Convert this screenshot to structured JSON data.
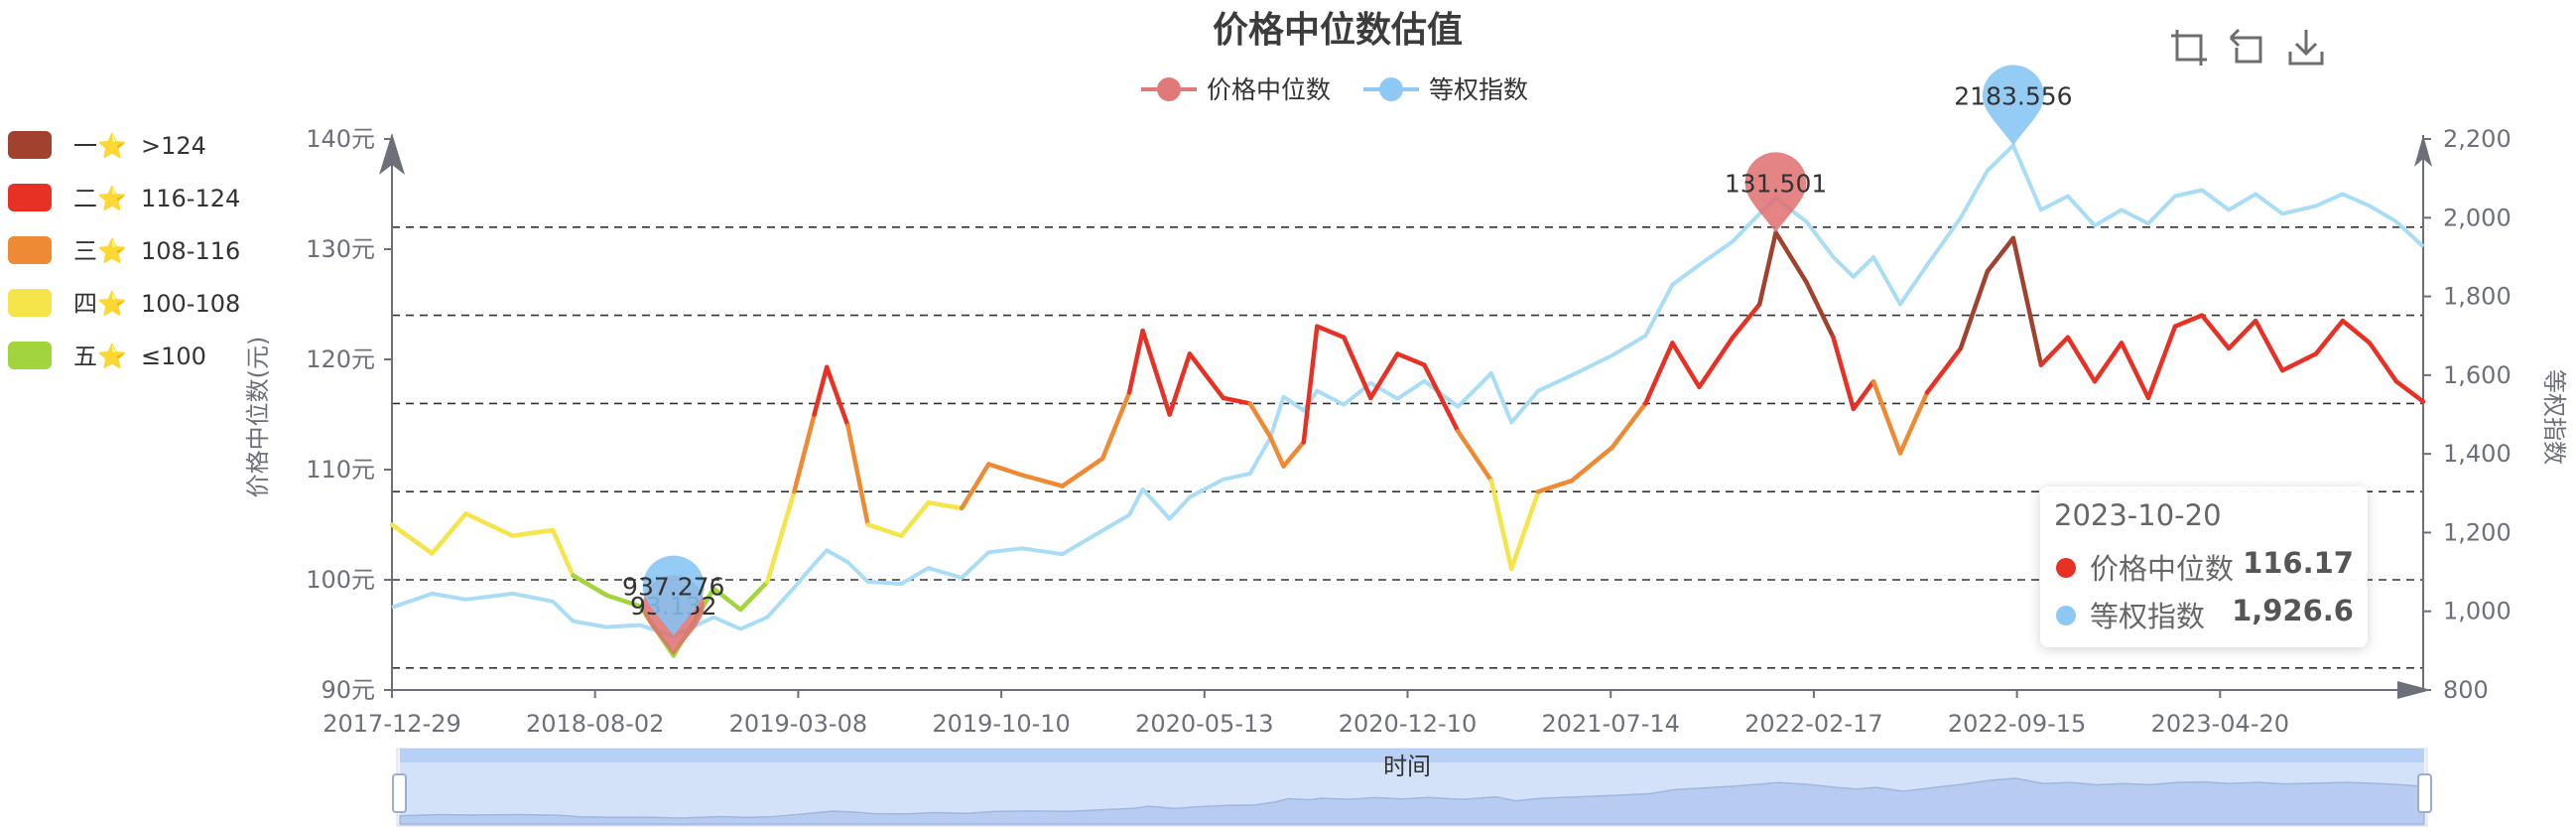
{
  "toolbox": {
    "icons": [
      "zoom-select-icon",
      "zoom-reset-icon",
      "save-image-icon"
    ]
  },
  "visual_map": {
    "pieces": [
      {
        "name": "一⭐",
        "range": ">124",
        "color": "#a0422e"
      },
      {
        "name": "二⭐",
        "range": "116-124",
        "color": "#e63124"
      },
      {
        "name": "三⭐",
        "range": "108-116",
        "color": "#ef8a34"
      },
      {
        "name": "四⭐",
        "range": "100-108",
        "color": "#f5e44a"
      },
      {
        "name": "五⭐",
        "range": "≤100",
        "color": "#a2d43c"
      }
    ]
  },
  "tooltip": {
    "date": "2023-10-20",
    "rows": [
      {
        "label": "价格中位数",
        "value": "116.17",
        "color": "#e63124"
      },
      {
        "label": "等权指数",
        "value": "1,926.6",
        "color": "#8ec9f5"
      }
    ]
  },
  "datazoom": {
    "label": "时间"
  },
  "chart_data": {
    "type": "line",
    "title": "价格中位数估值",
    "legend": [
      "价格中位数",
      "等权指数"
    ],
    "legend_colors": [
      "#e07a7a",
      "#8ec9f5"
    ],
    "x_ticks": [
      "2017-12-29",
      "2018-08-02",
      "2019-03-08",
      "2019-10-10",
      "2020-05-13",
      "2020-12-10",
      "2021-07-14",
      "2022-02-17",
      "2022-09-15",
      "2023-04-20"
    ],
    "x_range": [
      "2017-12-29",
      "2023-10-20"
    ],
    "y_left": {
      "name": "价格中位数(元)",
      "ticks": [
        "90元",
        "100元",
        "110元",
        "120元",
        "130元",
        "140元"
      ],
      "range": [
        90,
        140
      ]
    },
    "y_right": {
      "name": "等权指数",
      "ticks": [
        "800",
        "1,000",
        "1,200",
        "1,400",
        "1,600",
        "1,800",
        "2,000",
        "2,200"
      ],
      "range": [
        800,
        2200
      ]
    },
    "mark_lines": [
      92,
      100,
      108,
      116,
      124,
      132
    ],
    "mark_points": [
      {
        "series": "价格中位数",
        "label": "93.132",
        "date": "2018-10-19",
        "value": 93.132
      },
      {
        "series": "价格中位数",
        "label": "131.501",
        "date": "2021-12-13",
        "value": 131.501
      },
      {
        "series": "等权指数",
        "label": "937.276",
        "date": "2018-10-19",
        "value": 937.276
      },
      {
        "series": "等权指数",
        "label": "2183.556",
        "date": "2022-08-18",
        "value": 2183.556
      }
    ],
    "series": [
      {
        "name": "价格中位数",
        "points": [
          [
            "2017-12-29",
            105.0
          ],
          [
            "2018-02-09",
            102.4
          ],
          [
            "2018-03-16",
            106.0
          ],
          [
            "2018-05-04",
            104.0
          ],
          [
            "2018-06-15",
            104.5
          ],
          [
            "2018-07-06",
            100.4
          ],
          [
            "2018-08-10",
            98.6
          ],
          [
            "2018-09-14",
            97.6
          ],
          [
            "2018-10-19",
            93.132
          ],
          [
            "2018-11-30",
            99.2
          ],
          [
            "2018-12-28",
            97.3
          ],
          [
            "2019-01-25",
            99.8
          ],
          [
            "2019-02-22",
            108.0
          ],
          [
            "2019-03-15",
            115.0
          ],
          [
            "2019-03-28",
            119.3
          ],
          [
            "2019-04-19",
            114.0
          ],
          [
            "2019-05-10",
            105.0
          ],
          [
            "2019-06-14",
            104.0
          ],
          [
            "2019-07-12",
            107.0
          ],
          [
            "2019-08-16",
            106.5
          ],
          [
            "2019-09-13",
            110.5
          ],
          [
            "2019-10-18",
            109.5
          ],
          [
            "2019-11-29",
            108.5
          ],
          [
            "2020-01-10",
            111.0
          ],
          [
            "2020-02-07",
            117.0
          ],
          [
            "2020-02-21",
            122.6
          ],
          [
            "2020-03-20",
            115.0
          ],
          [
            "2020-04-10",
            120.5
          ],
          [
            "2020-05-15",
            116.5
          ],
          [
            "2020-06-12",
            116.0
          ],
          [
            "2020-07-03",
            113.0
          ],
          [
            "2020-07-17",
            110.3
          ],
          [
            "2020-08-07",
            112.5
          ],
          [
            "2020-08-21",
            123.0
          ],
          [
            "2020-09-18",
            122.0
          ],
          [
            "2020-10-16",
            116.5
          ],
          [
            "2020-11-13",
            120.5
          ],
          [
            "2020-12-11",
            119.5
          ],
          [
            "2021-01-15",
            113.5
          ],
          [
            "2021-02-19",
            109.0
          ],
          [
            "2021-03-12",
            101.0
          ],
          [
            "2021-04-09",
            108.0
          ],
          [
            "2021-05-14",
            109.0
          ],
          [
            "2021-06-25",
            112.0
          ],
          [
            "2021-07-30",
            116.0
          ],
          [
            "2021-08-27",
            121.5
          ],
          [
            "2021-09-24",
            117.5
          ],
          [
            "2021-10-29",
            122.0
          ],
          [
            "2021-11-26",
            125.0
          ],
          [
            "2021-12-13",
            131.501
          ],
          [
            "2022-01-14",
            127.0
          ],
          [
            "2022-02-11",
            122.0
          ],
          [
            "2022-03-04",
            115.5
          ],
          [
            "2022-03-25",
            118.0
          ],
          [
            "2022-04-22",
            111.5
          ],
          [
            "2022-05-20",
            117.0
          ],
          [
            "2022-06-24",
            121.0
          ],
          [
            "2022-07-22",
            128.0
          ],
          [
            "2022-08-18",
            131.0
          ],
          [
            "2022-09-16",
            119.5
          ],
          [
            "2022-10-14",
            122.0
          ],
          [
            "2022-11-11",
            118.0
          ],
          [
            "2022-12-09",
            121.5
          ],
          [
            "2023-01-06",
            116.5
          ],
          [
            "2023-02-03",
            123.0
          ],
          [
            "2023-03-03",
            124.0
          ],
          [
            "2023-03-31",
            121.0
          ],
          [
            "2023-04-28",
            123.5
          ],
          [
            "2023-05-26",
            119.0
          ],
          [
            "2023-06-30",
            120.5
          ],
          [
            "2023-07-28",
            123.5
          ],
          [
            "2023-08-25",
            121.5
          ],
          [
            "2023-09-22",
            118.0
          ],
          [
            "2023-10-20",
            116.17
          ]
        ]
      },
      {
        "name": "等权指数",
        "color": "#a9ddf5",
        "points": [
          [
            "2017-12-29",
            1010
          ],
          [
            "2018-02-09",
            1045
          ],
          [
            "2018-03-16",
            1030
          ],
          [
            "2018-05-04",
            1045
          ],
          [
            "2018-06-15",
            1025
          ],
          [
            "2018-07-06",
            975
          ],
          [
            "2018-08-10",
            960
          ],
          [
            "2018-09-14",
            965
          ],
          [
            "2018-10-19",
            937.276
          ],
          [
            "2018-11-30",
            985
          ],
          [
            "2018-12-28",
            955
          ],
          [
            "2019-01-25",
            985
          ],
          [
            "2019-02-22",
            1060
          ],
          [
            "2019-03-15",
            1120
          ],
          [
            "2019-03-28",
            1155
          ],
          [
            "2019-04-19",
            1125
          ],
          [
            "2019-05-10",
            1075
          ],
          [
            "2019-06-14",
            1070
          ],
          [
            "2019-07-12",
            1110
          ],
          [
            "2019-08-16",
            1085
          ],
          [
            "2019-09-13",
            1150
          ],
          [
            "2019-10-18",
            1160
          ],
          [
            "2019-11-29",
            1145
          ],
          [
            "2020-01-10",
            1205
          ],
          [
            "2020-02-07",
            1245
          ],
          [
            "2020-02-21",
            1310
          ],
          [
            "2020-03-20",
            1235
          ],
          [
            "2020-04-10",
            1290
          ],
          [
            "2020-05-15",
            1335
          ],
          [
            "2020-06-12",
            1350
          ],
          [
            "2020-07-03",
            1440
          ],
          [
            "2020-07-17",
            1545
          ],
          [
            "2020-08-07",
            1510
          ],
          [
            "2020-08-21",
            1560
          ],
          [
            "2020-09-18",
            1525
          ],
          [
            "2020-10-16",
            1580
          ],
          [
            "2020-11-13",
            1540
          ],
          [
            "2020-12-11",
            1585
          ],
          [
            "2021-01-15",
            1520
          ],
          [
            "2021-02-19",
            1605
          ],
          [
            "2021-03-12",
            1480
          ],
          [
            "2021-04-09",
            1560
          ],
          [
            "2021-05-14",
            1600
          ],
          [
            "2021-06-25",
            1650
          ],
          [
            "2021-07-30",
            1700
          ],
          [
            "2021-08-27",
            1830
          ],
          [
            "2021-09-24",
            1880
          ],
          [
            "2021-10-29",
            1940
          ],
          [
            "2021-11-26",
            2010
          ],
          [
            "2021-12-13",
            2050
          ],
          [
            "2022-01-14",
            1990
          ],
          [
            "2022-02-11",
            1900
          ],
          [
            "2022-03-04",
            1850
          ],
          [
            "2022-03-25",
            1900
          ],
          [
            "2022-04-22",
            1780
          ],
          [
            "2022-05-20",
            1880
          ],
          [
            "2022-06-24",
            2000
          ],
          [
            "2022-07-22",
            2120
          ],
          [
            "2022-08-18",
            2183.556
          ],
          [
            "2022-09-16",
            2020
          ],
          [
            "2022-10-14",
            2055
          ],
          [
            "2022-11-11",
            1980
          ],
          [
            "2022-12-09",
            2020
          ],
          [
            "2023-01-06",
            1985
          ],
          [
            "2023-02-03",
            2055
          ],
          [
            "2023-03-03",
            2070
          ],
          [
            "2023-03-31",
            2020
          ],
          [
            "2023-04-28",
            2060
          ],
          [
            "2023-05-26",
            2010
          ],
          [
            "2023-06-30",
            2030
          ],
          [
            "2023-07-28",
            2060
          ],
          [
            "2023-08-25",
            2030
          ],
          [
            "2023-09-22",
            1990
          ],
          [
            "2023-10-20",
            1926.6
          ]
        ]
      }
    ]
  }
}
